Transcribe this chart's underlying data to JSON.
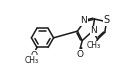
{
  "bg_color": "#ffffff",
  "line_color": "#1a1a1a",
  "line_width": 1.1,
  "font_size": 6.5,
  "fig_width": 1.34,
  "fig_height": 0.8,
  "dpi": 100,
  "xlim": [
    0,
    10
  ],
  "ylim": [
    0,
    6
  ]
}
